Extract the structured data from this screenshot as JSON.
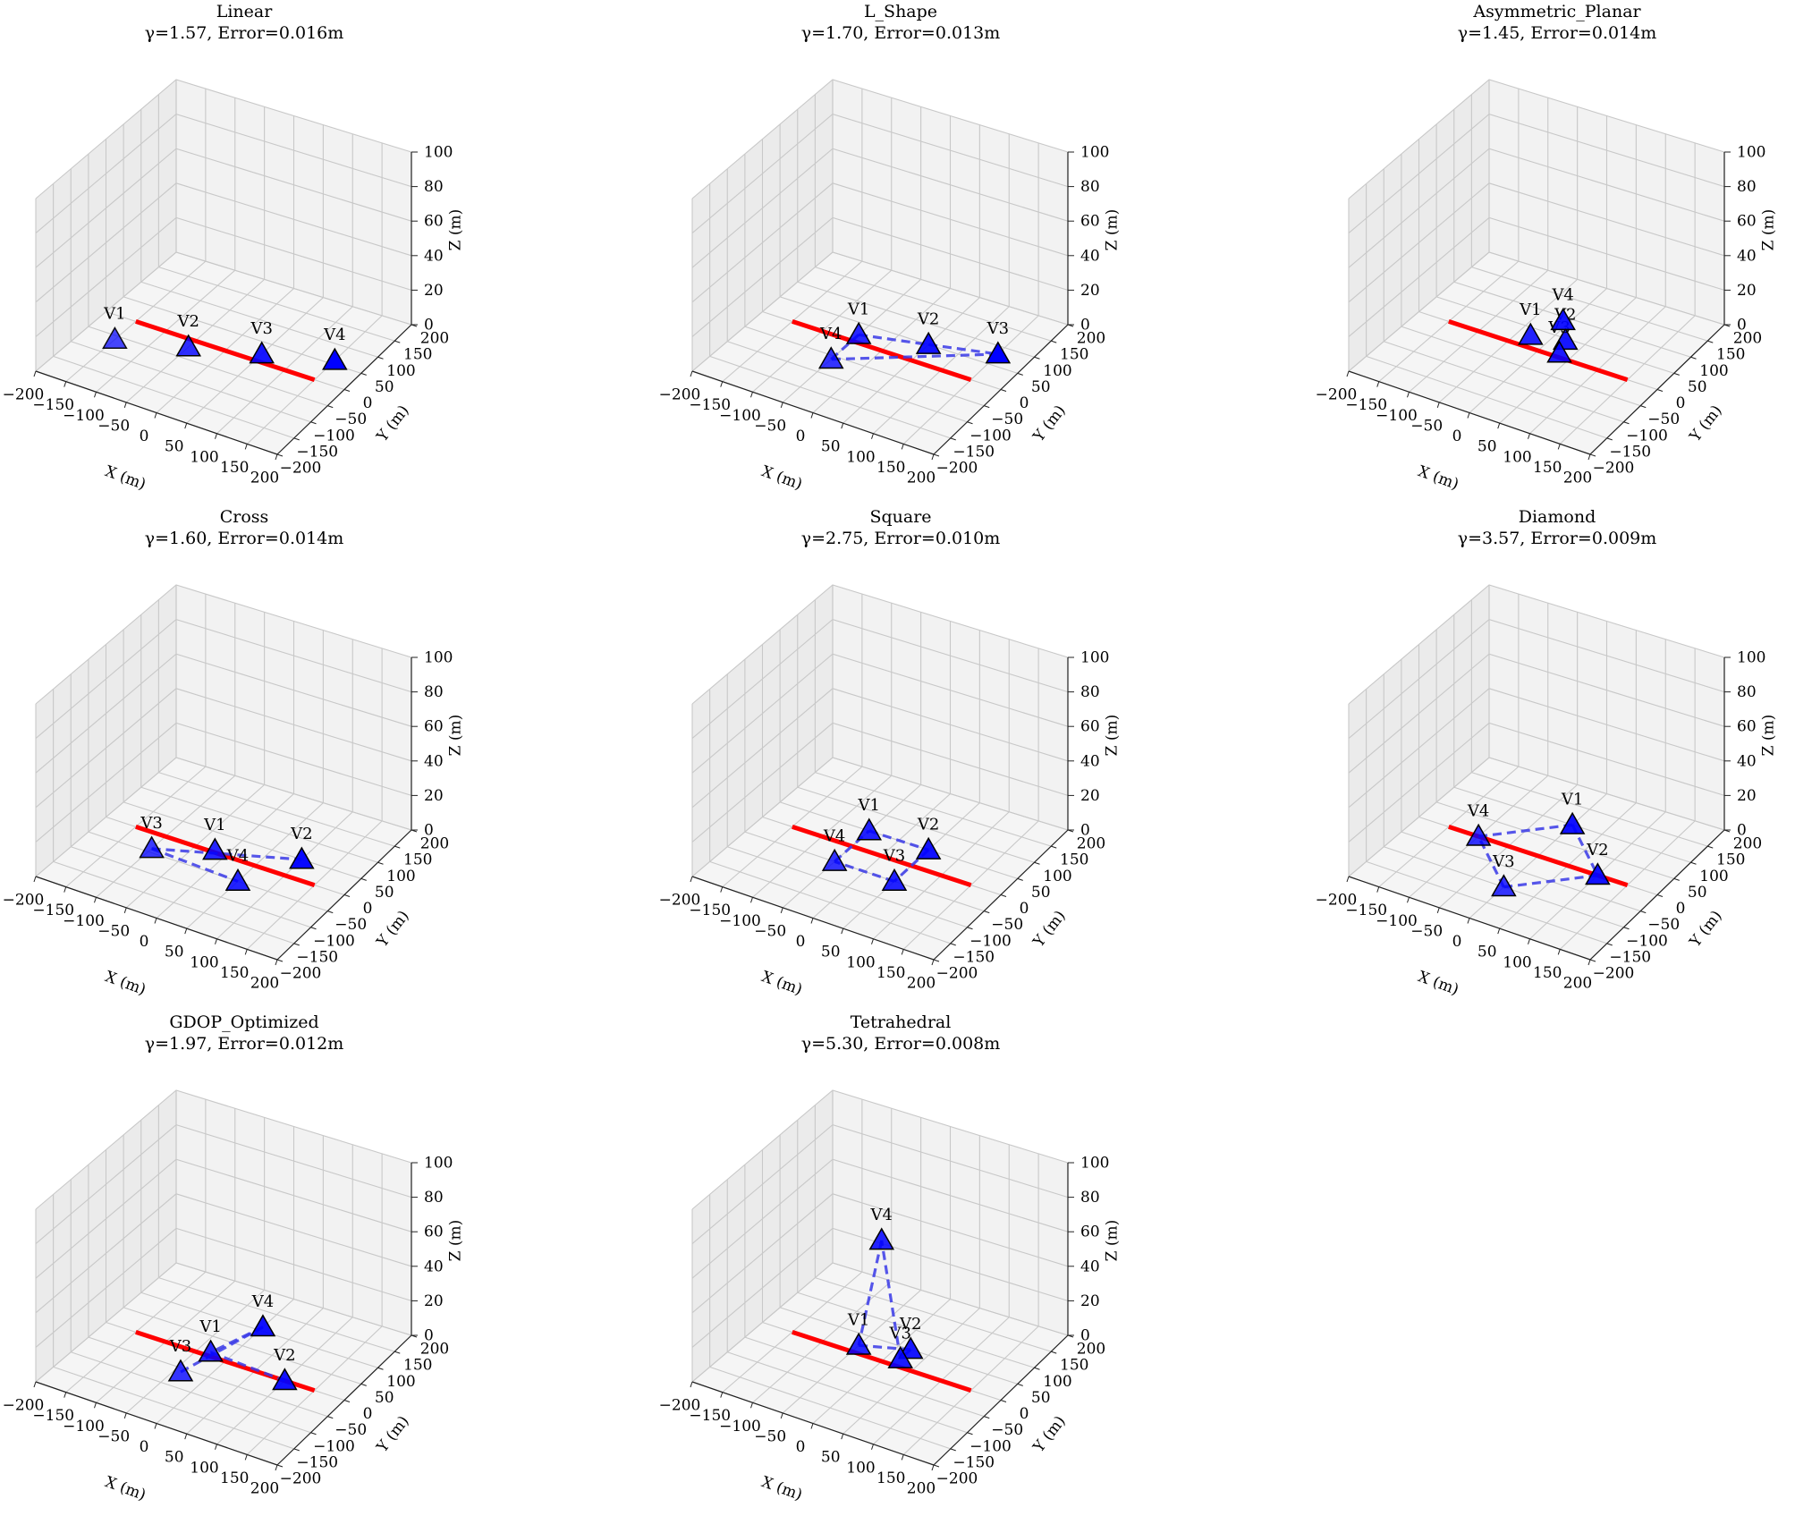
{
  "chart_data": [
    {
      "type": "scatter",
      "subplot_type": "3d",
      "title": "Linear",
      "subtitle": "γ=1.57, Error=0.016m",
      "xlabel": "X (m)",
      "ylabel": "Y (m)",
      "zlabel": "Z (m)",
      "xlim": [
        -200,
        200
      ],
      "ylim": [
        -200,
        200
      ],
      "zlim": [
        0,
        100
      ],
      "xticks": [
        "−200",
        "−150",
        "−100",
        "−50",
        "0",
        "50",
        "100",
        "150",
        "200"
      ],
      "yticks": [
        "−200",
        "−150",
        "−100",
        "−50",
        "0",
        "50",
        "100",
        "150",
        "200"
      ],
      "zticks": [
        "0",
        "20",
        "40",
        "60",
        "80",
        "100"
      ],
      "grid": true,
      "reference_line": {
        "color": "#ff0000",
        "points": [
          [
            -150,
            0,
            0
          ],
          [
            150,
            0,
            0
          ]
        ]
      },
      "vertex_color": "#0000ff",
      "connect_vertices": false,
      "vertices": [
        {
          "label": "V1",
          "x": -150,
          "y": 60,
          "z": 0
        },
        {
          "label": "V2",
          "x": -50,
          "y": 20,
          "z": 0
        },
        {
          "label": "V3",
          "x": 50,
          "y": -20,
          "z": 0
        },
        {
          "label": "V4",
          "x": 150,
          "y": -60,
          "z": 0
        }
      ],
      "edges": []
    },
    {
      "type": "scatter",
      "subplot_type": "3d",
      "title": "L_Shape",
      "subtitle": "γ=1.70, Error=0.013m",
      "xlabel": "X (m)",
      "ylabel": "Y (m)",
      "zlabel": "Z (m)",
      "xlim": [
        -200,
        200
      ],
      "ylim": [
        -200,
        200
      ],
      "zlim": [
        0,
        100
      ],
      "xticks": [
        "−200",
        "−150",
        "−100",
        "−50",
        "0",
        "50",
        "100",
        "150",
        "200"
      ],
      "yticks": [
        "−200",
        "−150",
        "−100",
        "−50",
        "0",
        "50",
        "100",
        "150",
        "200"
      ],
      "zticks": [
        "0",
        "20",
        "40",
        "60",
        "80",
        "100"
      ],
      "grid": true,
      "reference_line": {
        "color": "#ff0000",
        "points": [
          [
            -150,
            0,
            0
          ],
          [
            150,
            0,
            0
          ]
        ]
      },
      "vertex_color": "#0000ff",
      "connect_vertices": true,
      "vertices": [
        {
          "label": "V1",
          "x": -50,
          "y": -20,
          "z": 0
        },
        {
          "label": "V2",
          "x": 50,
          "y": -50,
          "z": 0
        },
        {
          "label": "V3",
          "x": 150,
          "y": -80,
          "z": 0
        },
        {
          "label": "V4",
          "x": -50,
          "y": 60,
          "z": 0
        }
      ],
      "edges": [
        [
          0,
          1
        ],
        [
          1,
          2
        ],
        [
          2,
          3
        ],
        [
          3,
          0
        ]
      ]
    },
    {
      "type": "scatter",
      "subplot_type": "3d",
      "title": "Asymmetric_Planar",
      "subtitle": "γ=1.45, Error=0.014m",
      "xlabel": "X (m)",
      "ylabel": "Y (m)",
      "zlabel": "Z (m)",
      "xlim": [
        -200,
        200
      ],
      "ylim": [
        -200,
        200
      ],
      "zlim": [
        0,
        100
      ],
      "xticks": [
        "−200",
        "−150",
        "−100",
        "−50",
        "0",
        "50",
        "100",
        "150",
        "200"
      ],
      "yticks": [
        "−200",
        "−150",
        "−100",
        "−50",
        "0",
        "50",
        "100",
        "150",
        "200"
      ],
      "zticks": [
        "0",
        "20",
        "40",
        "60",
        "80",
        "100"
      ],
      "grid": true,
      "reference_line": {
        "color": "#ff0000",
        "points": [
          [
            -150,
            0,
            0
          ],
          [
            150,
            0,
            0
          ]
        ]
      },
      "vertex_color": "#0000ff",
      "connect_vertices": false,
      "vertices": [
        {
          "label": "V1",
          "x": -30,
          "y": -30,
          "z": 0
        },
        {
          "label": "V2",
          "x": 20,
          "y": -45,
          "z": 0
        },
        {
          "label": "V3",
          "x": 30,
          "y": -10,
          "z": 0
        },
        {
          "label": "V4",
          "x": -10,
          "y": -90,
          "z": 0
        }
      ],
      "edges": []
    },
    {
      "type": "scatter",
      "subplot_type": "3d",
      "title": "Cross",
      "subtitle": "γ=1.60, Error=0.014m",
      "xlabel": "X (m)",
      "ylabel": "Y (m)",
      "zlabel": "Z (m)",
      "xlim": [
        -200,
        200
      ],
      "ylim": [
        -200,
        200
      ],
      "zlim": [
        0,
        100
      ],
      "xticks": [
        "−200",
        "−150",
        "−100",
        "−50",
        "0",
        "50",
        "100",
        "150",
        "200"
      ],
      "yticks": [
        "−200",
        "−150",
        "−100",
        "−50",
        "0",
        "50",
        "100",
        "150",
        "200"
      ],
      "zticks": [
        "0",
        "20",
        "40",
        "60",
        "80",
        "100"
      ],
      "grid": true,
      "reference_line": {
        "color": "#ff0000",
        "points": [
          [
            -150,
            0,
            0
          ],
          [
            150,
            0,
            0
          ]
        ]
      },
      "vertex_color": "#0000ff",
      "connect_vertices": true,
      "vertices": [
        {
          "label": "V1",
          "x": -20,
          "y": -5,
          "z": 0
        },
        {
          "label": "V2",
          "x": 100,
          "y": -50,
          "z": 0
        },
        {
          "label": "V3",
          "x": -100,
          "y": 40,
          "z": 0
        },
        {
          "label": "V4",
          "x": 50,
          "y": 50,
          "z": 0
        }
      ],
      "edges": [
        [
          2,
          1
        ],
        [
          2,
          3
        ]
      ]
    },
    {
      "type": "scatter",
      "subplot_type": "3d",
      "title": "Square",
      "subtitle": "γ=2.75, Error=0.010m",
      "xlabel": "X (m)",
      "ylabel": "Y (m)",
      "zlabel": "Z (m)",
      "xlim": [
        -200,
        200
      ],
      "ylim": [
        -200,
        200
      ],
      "zlim": [
        0,
        100
      ],
      "xticks": [
        "−200",
        "−150",
        "−100",
        "−50",
        "0",
        "50",
        "100",
        "150",
        "200"
      ],
      "yticks": [
        "−200",
        "−150",
        "−100",
        "−50",
        "0",
        "50",
        "100",
        "150",
        "200"
      ],
      "zticks": [
        "0",
        "20",
        "40",
        "60",
        "80",
        "100"
      ],
      "grid": true,
      "reference_line": {
        "color": "#ff0000",
        "points": [
          [
            -150,
            0,
            0
          ],
          [
            150,
            0,
            0
          ]
        ]
      },
      "vertex_color": "#0000ff",
      "connect_vertices": true,
      "vertices": [
        {
          "label": "V1",
          "x": -50,
          "y": -50,
          "z": 0
        },
        {
          "label": "V2",
          "x": 50,
          "y": -50,
          "z": 0
        },
        {
          "label": "V3",
          "x": 50,
          "y": 50,
          "z": 0
        },
        {
          "label": "V4",
          "x": -50,
          "y": 50,
          "z": 0
        }
      ],
      "edges": [
        [
          0,
          1
        ],
        [
          1,
          2
        ],
        [
          2,
          3
        ],
        [
          3,
          0
        ]
      ]
    },
    {
      "type": "scatter",
      "subplot_type": "3d",
      "title": "Diamond",
      "subtitle": "γ=3.57, Error=0.009m",
      "xlabel": "X (m)",
      "ylabel": "Y (m)",
      "zlabel": "Z (m)",
      "xlim": [
        -200,
        200
      ],
      "ylim": [
        -200,
        200
      ],
      "zlim": [
        0,
        100
      ],
      "xticks": [
        "−200",
        "−150",
        "−100",
        "−50",
        "0",
        "50",
        "100",
        "150",
        "200"
      ],
      "yticks": [
        "−200",
        "−150",
        "−100",
        "−50",
        "0",
        "50",
        "100",
        "150",
        "200"
      ],
      "zticks": [
        "0",
        "20",
        "40",
        "60",
        "80",
        "100"
      ],
      "grid": true,
      "reference_line": {
        "color": "#ff0000",
        "points": [
          [
            -150,
            0,
            0
          ],
          [
            150,
            0,
            0
          ]
        ]
      },
      "vertex_color": "#0000ff",
      "connect_vertices": true,
      "vertices": [
        {
          "label": "V1",
          "x": 0,
          "y": -100,
          "z": 0
        },
        {
          "label": "V2",
          "x": 100,
          "y": 0,
          "z": 0
        },
        {
          "label": "V3",
          "x": 0,
          "y": 100,
          "z": 0
        },
        {
          "label": "V4",
          "x": -100,
          "y": 0,
          "z": 0
        }
      ],
      "edges": [
        [
          0,
          1
        ],
        [
          1,
          2
        ],
        [
          2,
          3
        ],
        [
          3,
          0
        ]
      ]
    },
    {
      "type": "scatter",
      "subplot_type": "3d",
      "title": "GDOP_Optimized",
      "subtitle": "γ=1.97, Error=0.012m",
      "xlabel": "X (m)",
      "ylabel": "Y (m)",
      "zlabel": "Z (m)",
      "xlim": [
        -200,
        200
      ],
      "ylim": [
        -200,
        200
      ],
      "zlim": [
        0,
        100
      ],
      "xticks": [
        "−200",
        "−150",
        "−100",
        "−50",
        "0",
        "50",
        "100",
        "150",
        "200"
      ],
      "yticks": [
        "−200",
        "−150",
        "−100",
        "−50",
        "0",
        "50",
        "100",
        "150",
        "200"
      ],
      "zticks": [
        "0",
        "20",
        "40",
        "60",
        "80",
        "100"
      ],
      "grid": true,
      "reference_line": {
        "color": "#ff0000",
        "points": [
          [
            -150,
            0,
            0
          ],
          [
            150,
            0,
            0
          ]
        ]
      },
      "vertex_color": "#0000ff",
      "connect_vertices": true,
      "vertices": [
        {
          "label": "V1",
          "x": -30,
          "y": -10,
          "z": 0
        },
        {
          "label": "V2",
          "x": 100,
          "y": 0,
          "z": 0
        },
        {
          "label": "V3",
          "x": -40,
          "y": 60,
          "z": 0
        },
        {
          "label": "V4",
          "x": 0,
          "y": -110,
          "z": 0
        }
      ],
      "edges": [
        [
          0,
          1
        ],
        [
          2,
          3
        ],
        [
          3,
          0
        ]
      ]
    },
    {
      "type": "scatter",
      "subplot_type": "3d",
      "title": "Tetrahedral",
      "subtitle": "γ=5.30, Error=0.008m",
      "xlabel": "X (m)",
      "ylabel": "Y (m)",
      "zlabel": "Z (m)",
      "xlim": [
        -200,
        200
      ],
      "ylim": [
        -200,
        200
      ],
      "zlim": [
        0,
        100
      ],
      "xticks": [
        "−200",
        "−150",
        "−100",
        "−50",
        "0",
        "50",
        "100",
        "150",
        "200"
      ],
      "yticks": [
        "−200",
        "−150",
        "−100",
        "−50",
        "0",
        "50",
        "100",
        "150",
        "200"
      ],
      "zticks": [
        "0",
        "20",
        "40",
        "60",
        "80",
        "100"
      ],
      "grid": true,
      "reference_line": {
        "color": "#ff0000",
        "points": [
          [
            -150,
            0,
            0
          ],
          [
            150,
            0,
            0
          ]
        ]
      },
      "vertex_color": "#0000ff",
      "connect_vertices": true,
      "vertices": [
        {
          "label": "V1",
          "x": -50,
          "y": -20,
          "z": 0
        },
        {
          "label": "V2",
          "x": 20,
          "y": -50,
          "z": 0
        },
        {
          "label": "V3",
          "x": 20,
          "y": -20,
          "z": 0
        },
        {
          "label": "V4",
          "x": 0,
          "y": 0,
          "z": 70
        }
      ],
      "edges": [
        [
          0,
          1
        ],
        [
          1,
          2
        ],
        [
          2,
          3
        ],
        [
          3,
          0
        ]
      ]
    }
  ]
}
